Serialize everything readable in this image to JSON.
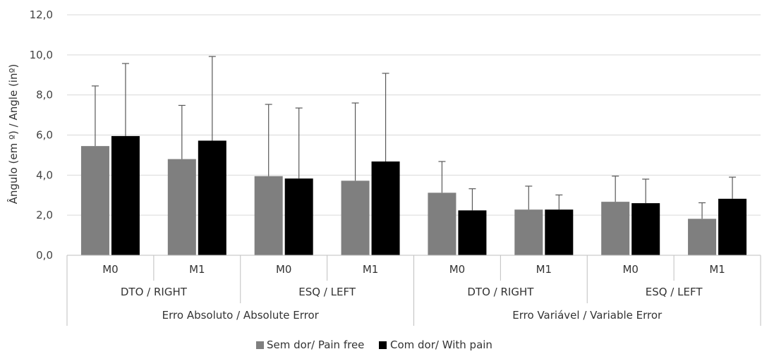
{
  "chart_data": {
    "type": "bar",
    "title": "",
    "ylabel": "Ângulo (em º) / Angle (inº)",
    "ylim": [
      0,
      12
    ],
    "y_ticks": [
      "0,0",
      "2,0",
      "4,0",
      "6,0",
      "8,0",
      "10,0",
      "12,0"
    ],
    "grid": true,
    "legend_position": "bottom",
    "categories": [
      "M0",
      "M1",
      "M0",
      "M1",
      "M0",
      "M1",
      "M0",
      "M1"
    ],
    "side_groups": [
      "DTO / RIGHT",
      "ESQ / LEFT",
      "DTO / RIGHT",
      "ESQ / LEFT"
    ],
    "error_groups": [
      "Erro Absoluto / Absolute Error",
      "Erro Variável / Variable Error"
    ],
    "series": [
      {
        "name": "Sem dor/ Pain free",
        "color": "#7f7f7f",
        "values": [
          5.45,
          4.8,
          3.95,
          3.72,
          3.12,
          2.28,
          2.67,
          1.82
        ],
        "error": [
          3.0,
          2.68,
          3.58,
          3.88,
          1.56,
          1.17,
          1.28,
          0.8
        ]
      },
      {
        "name": "Com dor/ With pain",
        "color": "#000000",
        "values": [
          5.95,
          5.72,
          3.83,
          4.68,
          2.24,
          2.28,
          2.6,
          2.82
        ],
        "error": [
          3.62,
          4.2,
          3.52,
          4.4,
          1.08,
          0.73,
          1.2,
          1.08
        ]
      }
    ]
  }
}
